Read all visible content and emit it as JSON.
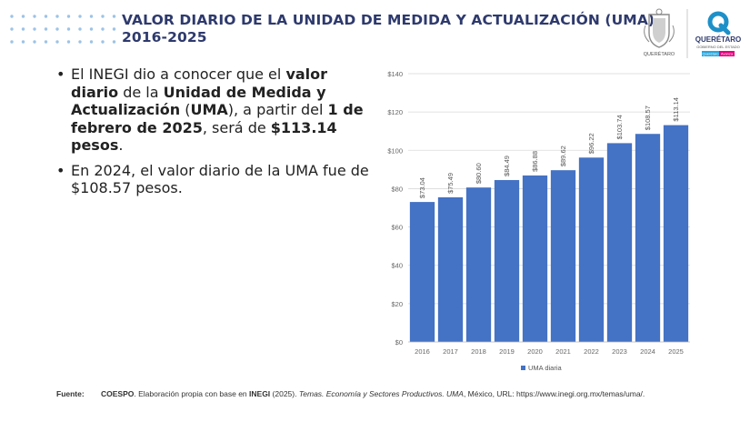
{
  "header": {
    "title_line1": "VALOR DIARIO DE LA UNIDAD DE MEDIDA Y ACTUALIZACIÓN (UMA),",
    "title_line2": "2016-2025",
    "logo_left_text": "QUERÉTARO",
    "logo_right_name": "QUERÉTARO",
    "logo_right_sub": "GOBIERNO DEL ESTADO",
    "logo_right_badge_a": "Querétaro",
    "logo_right_badge_b": "Avanza"
  },
  "bullets": [
    {
      "parts": [
        {
          "t": "El INEGI dio a conocer que el ",
          "b": false
        },
        {
          "t": "valor diario",
          "b": true
        },
        {
          "t": " de la ",
          "b": false
        },
        {
          "t": "Unidad de Medida y Actualización",
          "b": true
        },
        {
          "t": " (",
          "b": false
        },
        {
          "t": "UMA",
          "b": true
        },
        {
          "t": "), a partir del ",
          "b": false
        },
        {
          "t": "1 de febrero de 2025",
          "b": true
        },
        {
          "t": ", será de ",
          "b": false
        },
        {
          "t": "$113.14 pesos",
          "b": true
        },
        {
          "t": ".",
          "b": false
        }
      ]
    },
    {
      "parts": [
        {
          "t": "En 2024, el valor diario de la UMA fue de $108.57 pesos.",
          "b": false
        }
      ]
    }
  ],
  "footer": {
    "label": "Fuente:",
    "org": "COESPO",
    "text1": ". Elaboración propia con base en ",
    "inegi": "INEGI",
    "text2": " (2025). ",
    "italic": "Temas. Economía y Sectores Productivos. UMA",
    "text3": ", México, URL: https://www.inegi.org.mx/temas/uma/."
  },
  "colors": {
    "bar": "#4472c4",
    "title": "#2e3a6d",
    "dots": "#9dc3e6",
    "grid": "#d9d9d9"
  },
  "chart_data": {
    "type": "bar",
    "categories": [
      "2016",
      "2017",
      "2018",
      "2019",
      "2020",
      "2021",
      "2022",
      "2023",
      "2024",
      "2025"
    ],
    "series": [
      {
        "name": "UMA diaria",
        "values": [
          73.04,
          75.49,
          80.6,
          84.49,
          86.88,
          89.62,
          96.22,
          103.74,
          108.57,
          113.14
        ]
      }
    ],
    "data_labels": [
      "$73.04",
      "$75.49",
      "$80.60",
      "$84.49",
      "$86.88",
      "$89.62",
      "$96.22",
      "$103.74",
      "$108.57",
      "$113.14"
    ],
    "y_ticks": [
      0,
      20,
      40,
      60,
      80,
      100,
      120,
      140
    ],
    "y_tick_labels": [
      "$0",
      "$20",
      "$40",
      "$60",
      "$80",
      "$100",
      "$120",
      "$140"
    ],
    "ylim": [
      0,
      140
    ],
    "grid": true,
    "legend": "bottom",
    "title": "",
    "xlabel": "",
    "ylabel": ""
  }
}
